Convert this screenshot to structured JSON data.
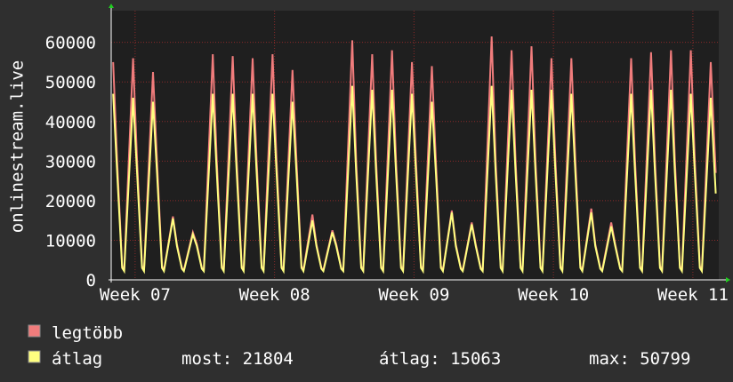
{
  "chart_data": {
    "type": "line",
    "y_label": "onlinestream.live",
    "x": [
      0.1,
      0.3,
      0.55,
      0.65,
      1.1,
      1.3,
      1.55,
      1.65,
      2.1,
      2.3,
      2.55,
      2.65,
      3.1,
      3.3,
      3.55,
      3.65,
      4.1,
      4.3,
      4.55,
      4.65,
      5.1,
      5.3,
      5.55,
      5.65,
      6.1,
      6.3,
      6.55,
      6.65,
      7.1,
      7.3,
      7.55,
      7.65,
      8.1,
      8.3,
      8.55,
      8.65,
      9.1,
      9.3,
      9.55,
      9.65,
      10.1,
      10.3,
      10.55,
      10.65,
      11.1,
      11.3,
      11.55,
      11.65,
      12.1,
      12.3,
      12.55,
      12.65,
      13.1,
      13.3,
      13.55,
      13.65,
      14.1,
      14.3,
      14.55,
      14.65,
      15.1,
      15.3,
      15.55,
      15.65,
      16.1,
      16.3,
      16.55,
      16.65,
      17.1,
      17.3,
      17.55,
      17.65,
      18.1,
      18.3,
      18.55,
      18.65,
      19.1,
      19.3,
      19.55,
      19.65,
      20.1,
      20.3,
      20.55,
      20.65,
      21.1,
      21.3,
      21.55,
      21.65,
      22.1,
      22.3,
      22.55,
      22.65,
      23.1,
      23.3,
      23.55,
      23.65,
      24.1,
      24.3,
      24.55,
      24.65,
      25.1,
      25.3,
      25.55,
      25.65,
      26.1,
      26.3,
      26.55,
      26.65,
      27.1,
      27.3,
      27.55,
      27.65,
      28.1,
      28.3,
      28.55,
      28.65,
      29.1,
      29.3,
      29.55,
      29.65,
      30.1,
      30.35
    ],
    "series": [
      {
        "name": "legtöbb",
        "color": "#f07c7c",
        "values": [
          55000,
          30000,
          3500,
          2500,
          56000,
          30000,
          3500,
          2500,
          52500,
          30000,
          3500,
          2500,
          16000,
          9000,
          3000,
          2500,
          12000,
          9000,
          3000,
          2500,
          57000,
          30000,
          3500,
          2500,
          56500,
          30000,
          3500,
          2500,
          56000,
          30000,
          3500,
          2500,
          57000,
          30000,
          3500,
          2500,
          53000,
          30000,
          3500,
          2500,
          16500,
          9000,
          3000,
          2500,
          12500,
          9000,
          3000,
          2500,
          60500,
          30000,
          3500,
          2500,
          57000,
          30000,
          3500,
          2500,
          58000,
          30000,
          3500,
          2500,
          55000,
          30000,
          3500,
          2500,
          54000,
          30000,
          3500,
          2500,
          17500,
          9000,
          3000,
          2500,
          14500,
          9000,
          3000,
          2500,
          61500,
          30000,
          3500,
          2500,
          58000,
          30000,
          3500,
          2500,
          59000,
          30000,
          3500,
          2500,
          56000,
          30000,
          3500,
          2500,
          56000,
          30000,
          3500,
          2500,
          18000,
          9000,
          3000,
          2500,
          14500,
          9000,
          3000,
          2500,
          56000,
          30000,
          3500,
          2500,
          57500,
          30000,
          3500,
          2500,
          58000,
          30000,
          3500,
          2500,
          58000,
          30000,
          3500,
          2500,
          55000,
          27000
        ]
      },
      {
        "name": "átlag",
        "color": "#ffff80",
        "values": [
          47000,
          27000,
          3000,
          2200,
          46000,
          27000,
          3000,
          2200,
          45000,
          27000,
          3000,
          2200,
          15500,
          8500,
          2800,
          2200,
          11500,
          8500,
          2800,
          2200,
          47000,
          27000,
          3000,
          2200,
          47000,
          27000,
          3000,
          2200,
          47000,
          27000,
          3000,
          2200,
          47000,
          27000,
          3000,
          2200,
          45000,
          27000,
          3000,
          2200,
          15000,
          8500,
          2800,
          2200,
          12000,
          8500,
          2800,
          2200,
          49000,
          27000,
          3000,
          2200,
          48000,
          27000,
          3000,
          2200,
          48000,
          27000,
          3000,
          2200,
          47000,
          27000,
          3000,
          2200,
          45000,
          27000,
          3000,
          2200,
          17000,
          8500,
          2800,
          2200,
          14000,
          8500,
          2800,
          2200,
          49000,
          27000,
          3000,
          2200,
          48000,
          27000,
          3000,
          2200,
          48000,
          27000,
          3000,
          2200,
          48000,
          27000,
          3000,
          2200,
          47000,
          27000,
          3000,
          2200,
          17000,
          8500,
          2800,
          2200,
          13500,
          8500,
          2800,
          2200,
          47000,
          27000,
          3000,
          2200,
          48000,
          27000,
          3000,
          2200,
          48000,
          27000,
          3000,
          2200,
          47000,
          27000,
          3000,
          2200,
          46000,
          21804
        ]
      }
    ],
    "xlim": [
      0,
      30.5
    ],
    "xticks": [
      {
        "value": 1.2,
        "label": "Week 07"
      },
      {
        "value": 8.2,
        "label": "Week 08"
      },
      {
        "value": 15.2,
        "label": "Week 09"
      },
      {
        "value": 22.2,
        "label": "Week 10"
      },
      {
        "value": 29.2,
        "label": "Week 11"
      }
    ],
    "ylim": [
      0,
      68000
    ],
    "yticks": [
      0,
      10000,
      20000,
      30000,
      40000,
      50000,
      60000
    ],
    "grid": true,
    "stats": [
      {
        "label": "most:",
        "value": 21804
      },
      {
        "label": "átlag:",
        "value": 15063
      },
      {
        "label": "max:",
        "value": 50799
      }
    ]
  }
}
